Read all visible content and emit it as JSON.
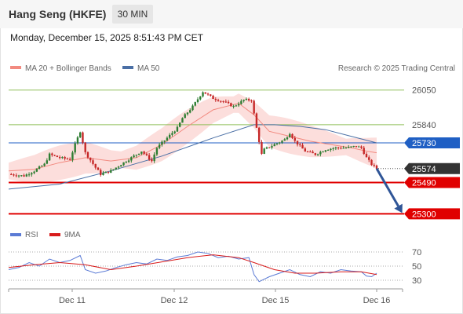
{
  "header": {
    "title": "Hang Seng (HKFE)",
    "timeframe": "30 MIN",
    "datetime": "Monday, December 15, 2025 8:51:43 PM CET"
  },
  "colors": {
    "bull": "#2e7d32",
    "bear": "#c62828",
    "ma20": "#f28a80",
    "ma50": "#4a6fa5",
    "band": "#fbd3d0",
    "resistance": "#8fbf5a",
    "pivot": "#1f5fc4",
    "support": "#e00000",
    "arrow": "#2f5597",
    "rsi": "#5b7bd5",
    "rsi_ma": "#d81b1b",
    "last_tag": "#333333"
  },
  "chart_data": [
    {
      "type": "candlestick",
      "legend": [
        {
          "label": "MA 20 + Bollinger Bands",
          "color": "#f28a80"
        },
        {
          "label": "MA 50",
          "color": "#4a6fa5"
        }
      ],
      "credit": "Research © 2025 Trading Central",
      "ylim": [
        25240,
        26120
      ],
      "levels": [
        {
          "value": 26050,
          "label": "26050",
          "kind": "resistance"
        },
        {
          "value": 25840,
          "label": "25840",
          "kind": "resistance"
        },
        {
          "value": 25730,
          "label": "25730",
          "kind": "pivot"
        },
        {
          "value": 25574,
          "label": "25574",
          "kind": "last"
        },
        {
          "value": 25490,
          "label": "25490",
          "kind": "support"
        },
        {
          "value": 25300,
          "label": "25300",
          "kind": "support"
        }
      ],
      "x_ticks": [
        "Dec 11",
        "Dec 12",
        "Dec 15",
        "Dec 16"
      ],
      "price_path": [
        [
          0,
          25540
        ],
        [
          6,
          25530
        ],
        [
          10,
          25560
        ],
        [
          14,
          25600
        ],
        [
          16,
          25660
        ],
        [
          20,
          25640
        ],
        [
          24,
          25630
        ],
        [
          26,
          25720
        ],
        [
          28,
          25800
        ],
        [
          30,
          25670
        ],
        [
          34,
          25580
        ],
        [
          36,
          25540
        ],
        [
          40,
          25560
        ],
        [
          44,
          25600
        ],
        [
          48,
          25640
        ],
        [
          52,
          25680
        ],
        [
          56,
          25620
        ],
        [
          58,
          25700
        ],
        [
          62,
          25760
        ],
        [
          66,
          25820
        ],
        [
          68,
          25880
        ],
        [
          72,
          25950
        ],
        [
          76,
          26040
        ],
        [
          80,
          26000
        ],
        [
          84,
          25980
        ],
        [
          88,
          25950
        ],
        [
          92,
          25990
        ],
        [
          95,
          25990
        ],
        [
          97,
          25820
        ],
        [
          99,
          25660
        ],
        [
          100,
          25690
        ],
        [
          104,
          25720
        ],
        [
          108,
          25750
        ],
        [
          110,
          25790
        ],
        [
          112,
          25740
        ],
        [
          116,
          25680
        ],
        [
          120,
          25660
        ],
        [
          124,
          25690
        ],
        [
          128,
          25700
        ],
        [
          132,
          25700
        ],
        [
          136,
          25710
        ],
        [
          138,
          25700
        ],
        [
          140,
          25640
        ],
        [
          142,
          25600
        ],
        [
          144,
          25574
        ]
      ],
      "ma20_path": [
        [
          0,
          25560
        ],
        [
          10,
          25570
        ],
        [
          20,
          25610
        ],
        [
          30,
          25640
        ],
        [
          40,
          25620
        ],
        [
          50,
          25640
        ],
        [
          60,
          25720
        ],
        [
          70,
          25830
        ],
        [
          80,
          25930
        ],
        [
          90,
          25970
        ],
        [
          96,
          25900
        ],
        [
          102,
          25800
        ],
        [
          110,
          25770
        ],
        [
          118,
          25740
        ],
        [
          126,
          25720
        ],
        [
          134,
          25700
        ],
        [
          140,
          25680
        ],
        [
          144,
          25670
        ]
      ],
      "ma50_path": [
        [
          0,
          25450
        ],
        [
          20,
          25480
        ],
        [
          40,
          25560
        ],
        [
          60,
          25650
        ],
        [
          80,
          25760
        ],
        [
          96,
          25840
        ],
        [
          104,
          25840
        ],
        [
          114,
          25830
        ],
        [
          124,
          25810
        ],
        [
          134,
          25770
        ],
        [
          144,
          25730
        ]
      ],
      "projection": {
        "from": [
          144,
          25574
        ],
        "to": [
          154,
          25305
        ]
      }
    },
    {
      "type": "line",
      "legend": [
        {
          "label": "RSI",
          "color": "#5b7bd5"
        },
        {
          "label": "9MA",
          "color": "#d81b1b"
        }
      ],
      "ylim": [
        20,
        80
      ],
      "y_ticks": [
        70,
        50,
        30
      ],
      "rsi_path": [
        [
          0,
          45
        ],
        [
          4,
          48
        ],
        [
          8,
          55
        ],
        [
          12,
          50
        ],
        [
          16,
          60
        ],
        [
          20,
          55
        ],
        [
          24,
          58
        ],
        [
          28,
          65
        ],
        [
          30,
          45
        ],
        [
          34,
          40
        ],
        [
          38,
          43
        ],
        [
          42,
          48
        ],
        [
          46,
          52
        ],
        [
          50,
          55
        ],
        [
          54,
          53
        ],
        [
          58,
          60
        ],
        [
          62,
          58
        ],
        [
          66,
          63
        ],
        [
          70,
          65
        ],
        [
          74,
          70
        ],
        [
          78,
          68
        ],
        [
          82,
          62
        ],
        [
          86,
          64
        ],
        [
          90,
          60
        ],
        [
          94,
          62
        ],
        [
          96,
          38
        ],
        [
          98,
          28
        ],
        [
          102,
          35
        ],
        [
          106,
          40
        ],
        [
          110,
          45
        ],
        [
          114,
          38
        ],
        [
          118,
          35
        ],
        [
          122,
          42
        ],
        [
          126,
          40
        ],
        [
          130,
          45
        ],
        [
          134,
          43
        ],
        [
          138,
          42
        ],
        [
          140,
          36
        ],
        [
          142,
          35
        ],
        [
          144,
          40
        ]
      ],
      "rsi_ma_path": [
        [
          0,
          48
        ],
        [
          10,
          52
        ],
        [
          20,
          55
        ],
        [
          30,
          52
        ],
        [
          40,
          45
        ],
        [
          50,
          50
        ],
        [
          60,
          56
        ],
        [
          70,
          62
        ],
        [
          80,
          66
        ],
        [
          90,
          62
        ],
        [
          96,
          55
        ],
        [
          104,
          45
        ],
        [
          112,
          40
        ],
        [
          120,
          40
        ],
        [
          130,
          42
        ],
        [
          138,
          42
        ],
        [
          144,
          38
        ]
      ]
    }
  ]
}
